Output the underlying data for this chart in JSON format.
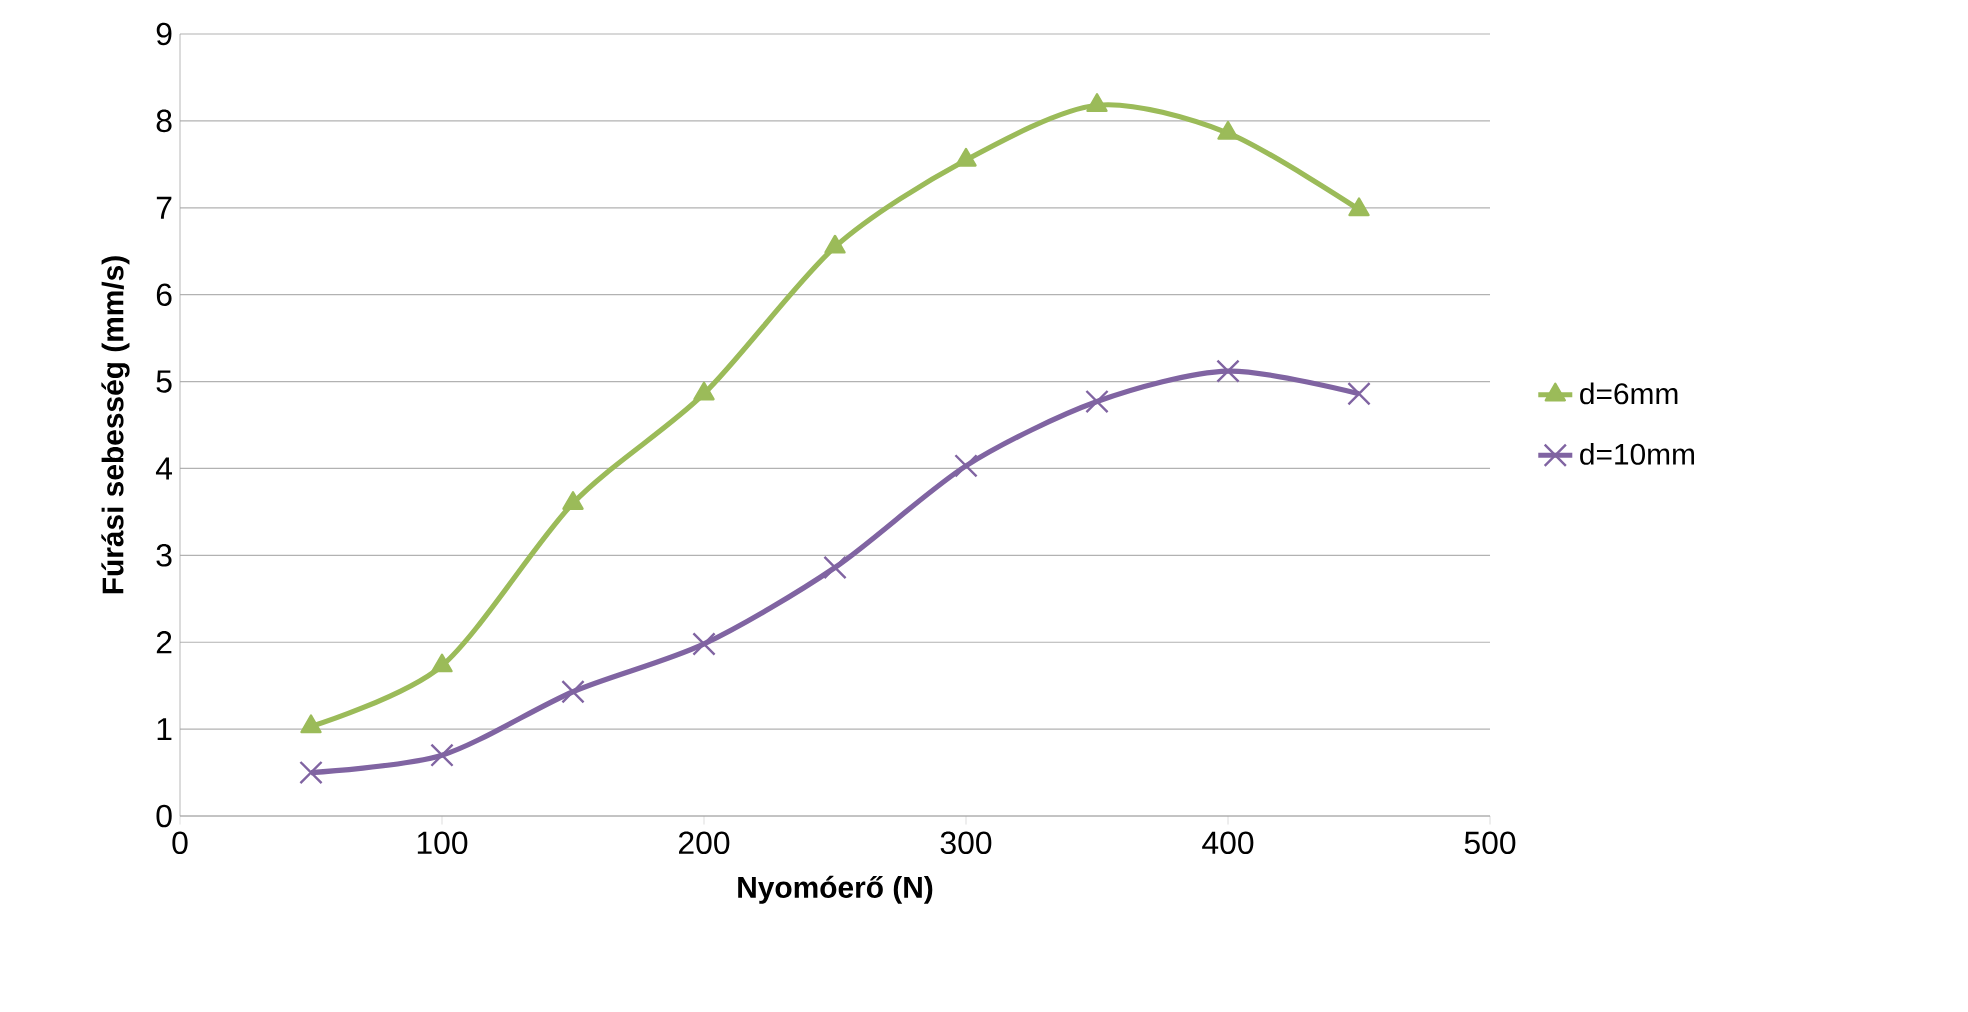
{
  "chart_data": {
    "type": "line",
    "xlabel": "Nyomóerő (N)",
    "ylabel": "Fúrási sebesség (mm/s)",
    "x": [
      50,
      100,
      150,
      200,
      250,
      300,
      350,
      400,
      450
    ],
    "series": [
      {
        "name": "d=6mm",
        "color": "#9bbb59",
        "marker": "triangle",
        "values": [
          1.03,
          1.73,
          3.6,
          4.86,
          6.55,
          7.55,
          8.18,
          7.86,
          6.98
        ]
      },
      {
        "name": "d=10mm",
        "color": "#8064a2",
        "marker": "cross",
        "values": [
          0.5,
          0.7,
          1.43,
          1.98,
          2.86,
          4.03,
          4.77,
          5.12,
          4.86
        ]
      }
    ],
    "xlim": [
      0,
      500
    ],
    "ylim": [
      0,
      9
    ],
    "xticks": [
      0,
      100,
      200,
      300,
      400,
      500
    ],
    "yticks": [
      0,
      1,
      2,
      3,
      4,
      5,
      6,
      7,
      8,
      9
    ],
    "grid": "y",
    "legend": "right",
    "line_style": "solid"
  }
}
